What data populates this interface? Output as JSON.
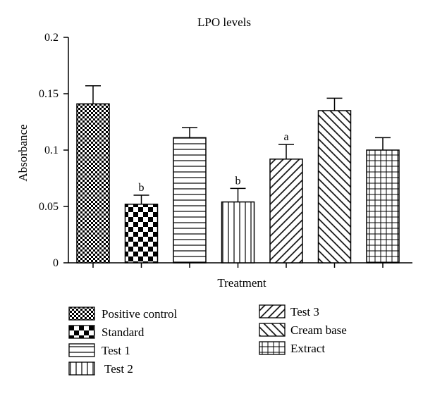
{
  "chart_data": {
    "type": "bar",
    "title": "LPO levels",
    "xlabel": "Treatment",
    "ylabel": "Absorbance",
    "ylim": [
      0,
      0.2
    ],
    "yticks": [
      "0",
      "0.05",
      "0.1",
      "0.15",
      "0.2"
    ],
    "grid": false,
    "legend_position": "bottom",
    "categories": [
      "Positive control",
      "Standard",
      "Test 1",
      "Test 2",
      "Test 3",
      "Cream base",
      "Extract"
    ],
    "values": [
      0.141,
      0.052,
      0.111,
      0.054,
      0.092,
      0.135,
      0.1
    ],
    "errors": [
      0.016,
      0.008,
      0.009,
      0.012,
      0.013,
      0.011,
      0.011
    ],
    "annotations": [
      "",
      "b",
      "",
      "b",
      "a",
      "",
      ""
    ],
    "patterns": [
      "fine-checker",
      "coarse-checker",
      "horizontal-lines",
      "vertical-lines",
      "diagonal-forward",
      "diagonal-backward",
      "grid"
    ]
  }
}
